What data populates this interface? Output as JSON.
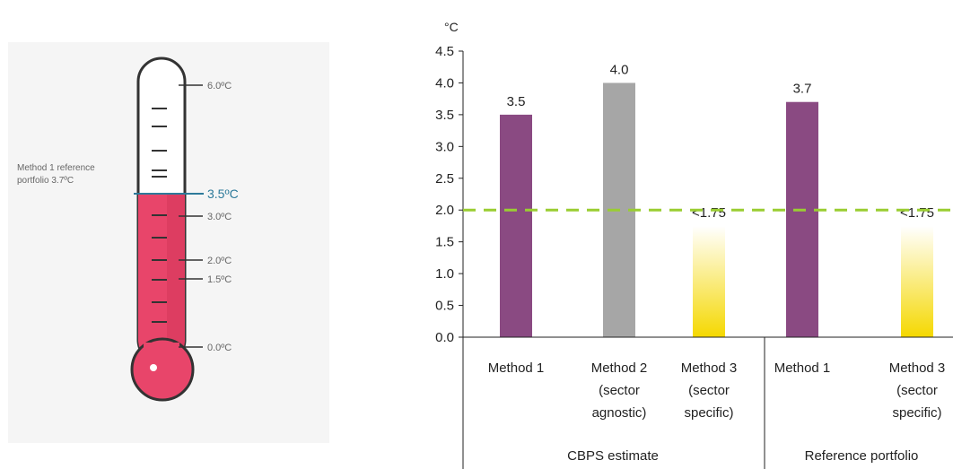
{
  "thermometer": {
    "reference_label_line1": "Method 1 reference",
    "reference_label_line2": "portfolio 3.7ºC",
    "scale_labels": [
      "6.0ºC",
      "3.5ºC",
      "3.0ºC",
      "2.0ºC",
      "1.5ºC",
      "0.0ºC"
    ],
    "highlight_label": "3.5ºC",
    "fill_value": 3.5,
    "colors": {
      "fill": "#e8456a",
      "highlight": "#2d7a9a",
      "tube": "#ffffff",
      "outline": "#333333"
    }
  },
  "chart_data": {
    "type": "bar",
    "y_unit": "°C",
    "ylim": [
      0,
      4.5
    ],
    "y_ticks": [
      "0.0",
      "0.5",
      "1.0",
      "1.5",
      "2.0",
      "2.5",
      "3.0",
      "3.5",
      "4.0",
      "4.5"
    ],
    "threshold": 2.0,
    "categories": [
      {
        "lines": [
          "Method 1"
        ],
        "value": 3.5,
        "label": "3.5",
        "color": "#8a4a82",
        "style": "solid"
      },
      {
        "lines": [
          "Method 2",
          "(sector",
          "agnostic)"
        ],
        "value": 4.0,
        "label": "4.0",
        "color": "#a6a6a6",
        "style": "solid"
      },
      {
        "lines": [
          "Method 3",
          "(sector",
          "specific)"
        ],
        "value": 1.75,
        "label": "<1.75",
        "color": "#f5d800",
        "style": "gradient"
      },
      {
        "lines": [
          "Method 1"
        ],
        "value": 3.7,
        "label": "3.7",
        "color": "#8a4a82",
        "style": "solid"
      },
      {
        "lines": [
          "Method 3",
          "(sector",
          "specific)"
        ],
        "value": 1.75,
        "label": "<1.75",
        "color": "#f5d800",
        "style": "gradient"
      }
    ],
    "groups": [
      {
        "label": "CBPS estimate"
      },
      {
        "label": "Reference portfolio"
      }
    ],
    "threshold_color": "#9acd32"
  }
}
